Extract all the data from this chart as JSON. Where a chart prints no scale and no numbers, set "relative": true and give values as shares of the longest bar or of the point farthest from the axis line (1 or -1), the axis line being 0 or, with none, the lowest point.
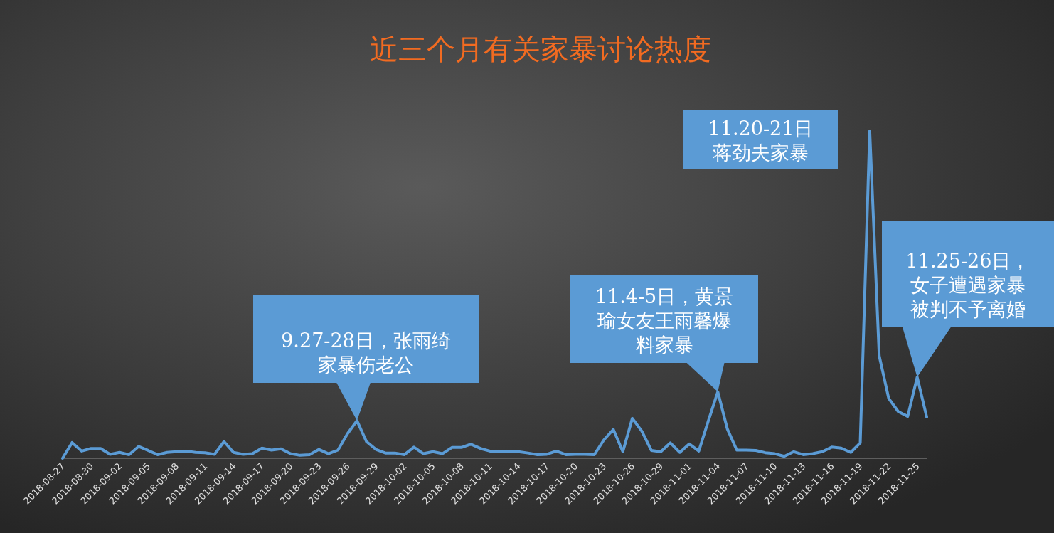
{
  "chart_data": {
    "type": "line",
    "title": "近三个月有关家暴讨论热度",
    "relative": true,
    "x": [
      "2018-08-27",
      "2018-08-28",
      "2018-08-29",
      "2018-08-30",
      "2018-08-31",
      "2018-09-01",
      "2018-09-02",
      "2018-09-03",
      "2018-09-04",
      "2018-09-05",
      "2018-09-06",
      "2018-09-07",
      "2018-09-08",
      "2018-09-09",
      "2018-09-10",
      "2018-09-11",
      "2018-09-12",
      "2018-09-13",
      "2018-09-14",
      "2018-09-15",
      "2018-09-16",
      "2018-09-17",
      "2018-09-18",
      "2018-09-19",
      "2018-09-20",
      "2018-09-21",
      "2018-09-22",
      "2018-09-23",
      "2018-09-24",
      "2018-09-25",
      "2018-09-26",
      "2018-09-27",
      "2018-09-28",
      "2018-09-29",
      "2018-09-30",
      "2018-10-01",
      "2018-10-02",
      "2018-10-03",
      "2018-10-04",
      "2018-10-05",
      "2018-10-06",
      "2018-10-07",
      "2018-10-08",
      "2018-10-09",
      "2018-10-10",
      "2018-10-11",
      "2018-10-12",
      "2018-10-13",
      "2018-10-14",
      "2018-10-15",
      "2018-10-16",
      "2018-10-17",
      "2018-10-18",
      "2018-10-19",
      "2018-10-20",
      "2018-10-21",
      "2018-10-22",
      "2018-10-23",
      "2018-10-24",
      "2018-10-25",
      "2018-10-26",
      "2018-10-27",
      "2018-10-28",
      "2018-10-29",
      "2018-10-30",
      "2018-10-31",
      "2018-11-01",
      "2018-11-02",
      "2018-11-03",
      "2018-11-04",
      "2018-11-05",
      "2018-11-06",
      "2018-11-07",
      "2018-11-08",
      "2018-11-09",
      "2018-11-10",
      "2018-11-11",
      "2018-11-12",
      "2018-11-13",
      "2018-11-14",
      "2018-11-15",
      "2018-11-16",
      "2018-11-17",
      "2018-11-18",
      "2018-11-19",
      "2018-11-20",
      "2018-11-21",
      "2018-11-22",
      "2018-11-23",
      "2018-11-24",
      "2018-11-25",
      "2018-11-26"
    ],
    "values": [
      0,
      0.048,
      0.022,
      0.03,
      0.03,
      0.012,
      0.018,
      0.011,
      0.036,
      0.024,
      0.011,
      0.018,
      0.02,
      0.022,
      0.018,
      0.017,
      0.012,
      0.051,
      0.018,
      0.012,
      0.014,
      0.031,
      0.025,
      0.029,
      0.014,
      0.009,
      0.011,
      0.027,
      0.014,
      0.025,
      0.075,
      0.115,
      0.051,
      0.027,
      0.016,
      0.016,
      0.011,
      0.034,
      0.014,
      0.02,
      0.014,
      0.033,
      0.033,
      0.043,
      0.03,
      0.022,
      0.02,
      0.02,
      0.02,
      0.016,
      0.011,
      0.012,
      0.022,
      0.011,
      0.012,
      0.012,
      0.011,
      0.056,
      0.088,
      0.02,
      0.122,
      0.083,
      0.024,
      0.02,
      0.047,
      0.018,
      0.044,
      0.022,
      0.114,
      0.203,
      0.09,
      0.025,
      0.025,
      0.024,
      0.017,
      0.014,
      0.006,
      0.02,
      0.011,
      0.014,
      0.02,
      0.034,
      0.031,
      0.018,
      0.047,
      1,
      0.313,
      0.183,
      0.143,
      0.128,
      0.248,
      0.126
    ],
    "color": "#5b9bd5",
    "xlim": [
      "2018-08-27",
      "2018-11-26"
    ],
    "xticks": [
      {
        "value": "2018-08-27",
        "label": "2018-08-27"
      },
      {
        "value": "2018-08-30",
        "label": "2018-08-30"
      },
      {
        "value": "2018-09-02",
        "label": "2018-09-02"
      },
      {
        "value": "2018-09-05",
        "label": "2018-09-05"
      },
      {
        "value": "2018-09-08",
        "label": "2018-09-08"
      },
      {
        "value": "2018-09-11",
        "label": "2018-09-11"
      },
      {
        "value": "2018-09-14",
        "label": "2018-09-14"
      },
      {
        "value": "2018-09-17",
        "label": "2018-09-17"
      },
      {
        "value": "2018-09-20",
        "label": "2018-09-20"
      },
      {
        "value": "2018-09-23",
        "label": "2018-09-23"
      },
      {
        "value": "2018-09-26",
        "label": "2018-09-26"
      },
      {
        "value": "2018-09-29",
        "label": "2018-09-29"
      },
      {
        "value": "2018-10-02",
        "label": "2018-10-02"
      },
      {
        "value": "2018-10-05",
        "label": "2018-10-05"
      },
      {
        "value": "2018-10-08",
        "label": "2018-10-08"
      },
      {
        "value": "2018-10-11",
        "label": "2018-10-11"
      },
      {
        "value": "2018-10-14",
        "label": "2018-10-14"
      },
      {
        "value": "2018-10-17",
        "label": "2018-10-17"
      },
      {
        "value": "2018-10-20",
        "label": "2018-10-20"
      },
      {
        "value": "2018-10-23",
        "label": "2018-10-23"
      },
      {
        "value": "2018-10-26",
        "label": "2018-10-26"
      },
      {
        "value": "2018-10-29",
        "label": "2018-10-29"
      },
      {
        "value": "2018-11-01",
        "label": "2018-11-01"
      },
      {
        "value": "2018-11-04",
        "label": "2018-11-04"
      },
      {
        "value": "2018-11-07",
        "label": "2018-11-07"
      },
      {
        "value": "2018-11-10",
        "label": "2018-11-10"
      },
      {
        "value": "2018-11-13",
        "label": "2018-11-13"
      },
      {
        "value": "2018-11-16",
        "label": "2018-11-16"
      },
      {
        "value": "2018-11-19",
        "label": "2018-11-19"
      },
      {
        "value": "2018-11-22",
        "label": "2018-11-22"
      },
      {
        "value": "2018-11-25",
        "label": "2018-11-25"
      }
    ],
    "annotations": [
      {
        "text": "9.27-28日，张雨绮家暴伤老公",
        "x": "2018-09-27",
        "y": 0.115
      },
      {
        "text": "11.4-5日，黄景瑜女友王雨馨爆料家暴",
        "x": "2018-11-04",
        "y": 0.203
      },
      {
        "text": "11.20-21日蒋劲夫家暴",
        "x": "2018-11-20",
        "y": 1
      },
      {
        "text": "11.25-26日，女子遭遇家暴被判不予离婚",
        "x": "2018-11-25",
        "y": 0.248
      }
    ],
    "marker": "none",
    "line_style": "solid",
    "grid": false,
    "legend": false
  }
}
